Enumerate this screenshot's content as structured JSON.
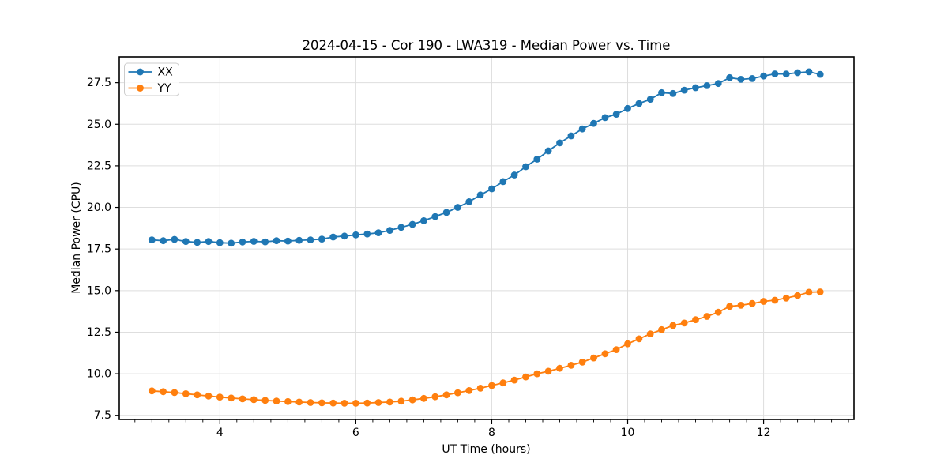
{
  "figure": {
    "background": "#ffffff",
    "spine_color": "#000000",
    "grid_color": "#dedede",
    "tick_color": "#000000",
    "text_color": "#000000",
    "legend_border_color": "#cccccc"
  },
  "chart_data": {
    "type": "line",
    "title": "2024-04-15 - Cor 190 - LWA319 - Median Power vs. Time",
    "xlabel": "UT Time (hours)",
    "ylabel": "Median Power (CPU)",
    "xlim": [
      2.52,
      13.33
    ],
    "ylim": [
      7.25,
      29.05
    ],
    "xticks": [
      4,
      6,
      8,
      10,
      12
    ],
    "yticks": [
      7.5,
      10.0,
      12.5,
      15.0,
      17.5,
      20.0,
      22.5,
      25.0,
      27.5
    ],
    "minor_xtick_step": 0.25,
    "grid": true,
    "legend_position": "upper-left",
    "x": [
      3.0,
      3.167,
      3.333,
      3.5,
      3.667,
      3.833,
      4.0,
      4.167,
      4.333,
      4.5,
      4.667,
      4.833,
      5.0,
      5.167,
      5.333,
      5.5,
      5.667,
      5.833,
      6.0,
      6.167,
      6.333,
      6.5,
      6.667,
      6.833,
      7.0,
      7.167,
      7.333,
      7.5,
      7.667,
      7.833,
      8.0,
      8.167,
      8.333,
      8.5,
      8.667,
      8.833,
      9.0,
      9.167,
      9.333,
      9.5,
      9.667,
      9.833,
      10.0,
      10.167,
      10.333,
      10.5,
      10.667,
      10.833,
      11.0,
      11.167,
      11.333,
      11.5,
      11.667,
      11.833,
      12.0,
      12.167,
      12.333,
      12.5,
      12.667,
      12.833
    ],
    "series": [
      {
        "name": "XX",
        "color": "#1f77b4",
        "values": [
          18.05,
          18.0,
          18.08,
          17.95,
          17.9,
          17.95,
          17.88,
          17.85,
          17.92,
          17.96,
          17.93,
          18.0,
          17.98,
          18.02,
          18.05,
          18.1,
          18.22,
          18.28,
          18.35,
          18.4,
          18.48,
          18.62,
          18.8,
          18.98,
          19.2,
          19.45,
          19.7,
          20.0,
          20.34,
          20.75,
          21.12,
          21.55,
          21.95,
          22.45,
          22.9,
          23.4,
          23.88,
          24.3,
          24.72,
          25.05,
          25.4,
          25.6,
          25.95,
          26.25,
          26.5,
          26.9,
          26.85,
          27.05,
          27.2,
          27.32,
          27.45,
          27.8,
          27.7,
          27.75,
          27.9,
          28.03,
          28.02,
          28.1,
          28.15,
          28.0
        ]
      },
      {
        "name": "YY",
        "color": "#ff7f0e",
        "values": [
          8.97,
          8.92,
          8.87,
          8.8,
          8.73,
          8.66,
          8.6,
          8.54,
          8.49,
          8.44,
          8.4,
          8.36,
          8.33,
          8.3,
          8.27,
          8.25,
          8.24,
          8.23,
          8.23,
          8.24,
          8.27,
          8.3,
          8.35,
          8.43,
          8.52,
          8.62,
          8.73,
          8.86,
          8.99,
          9.13,
          9.29,
          9.45,
          9.62,
          9.81,
          10.0,
          10.15,
          10.33,
          10.51,
          10.7,
          10.95,
          11.2,
          11.45,
          11.8,
          12.1,
          12.4,
          12.65,
          12.9,
          13.05,
          13.25,
          13.45,
          13.7,
          14.05,
          14.12,
          14.22,
          14.35,
          14.42,
          14.55,
          14.7,
          14.9,
          14.92
        ]
      }
    ]
  }
}
